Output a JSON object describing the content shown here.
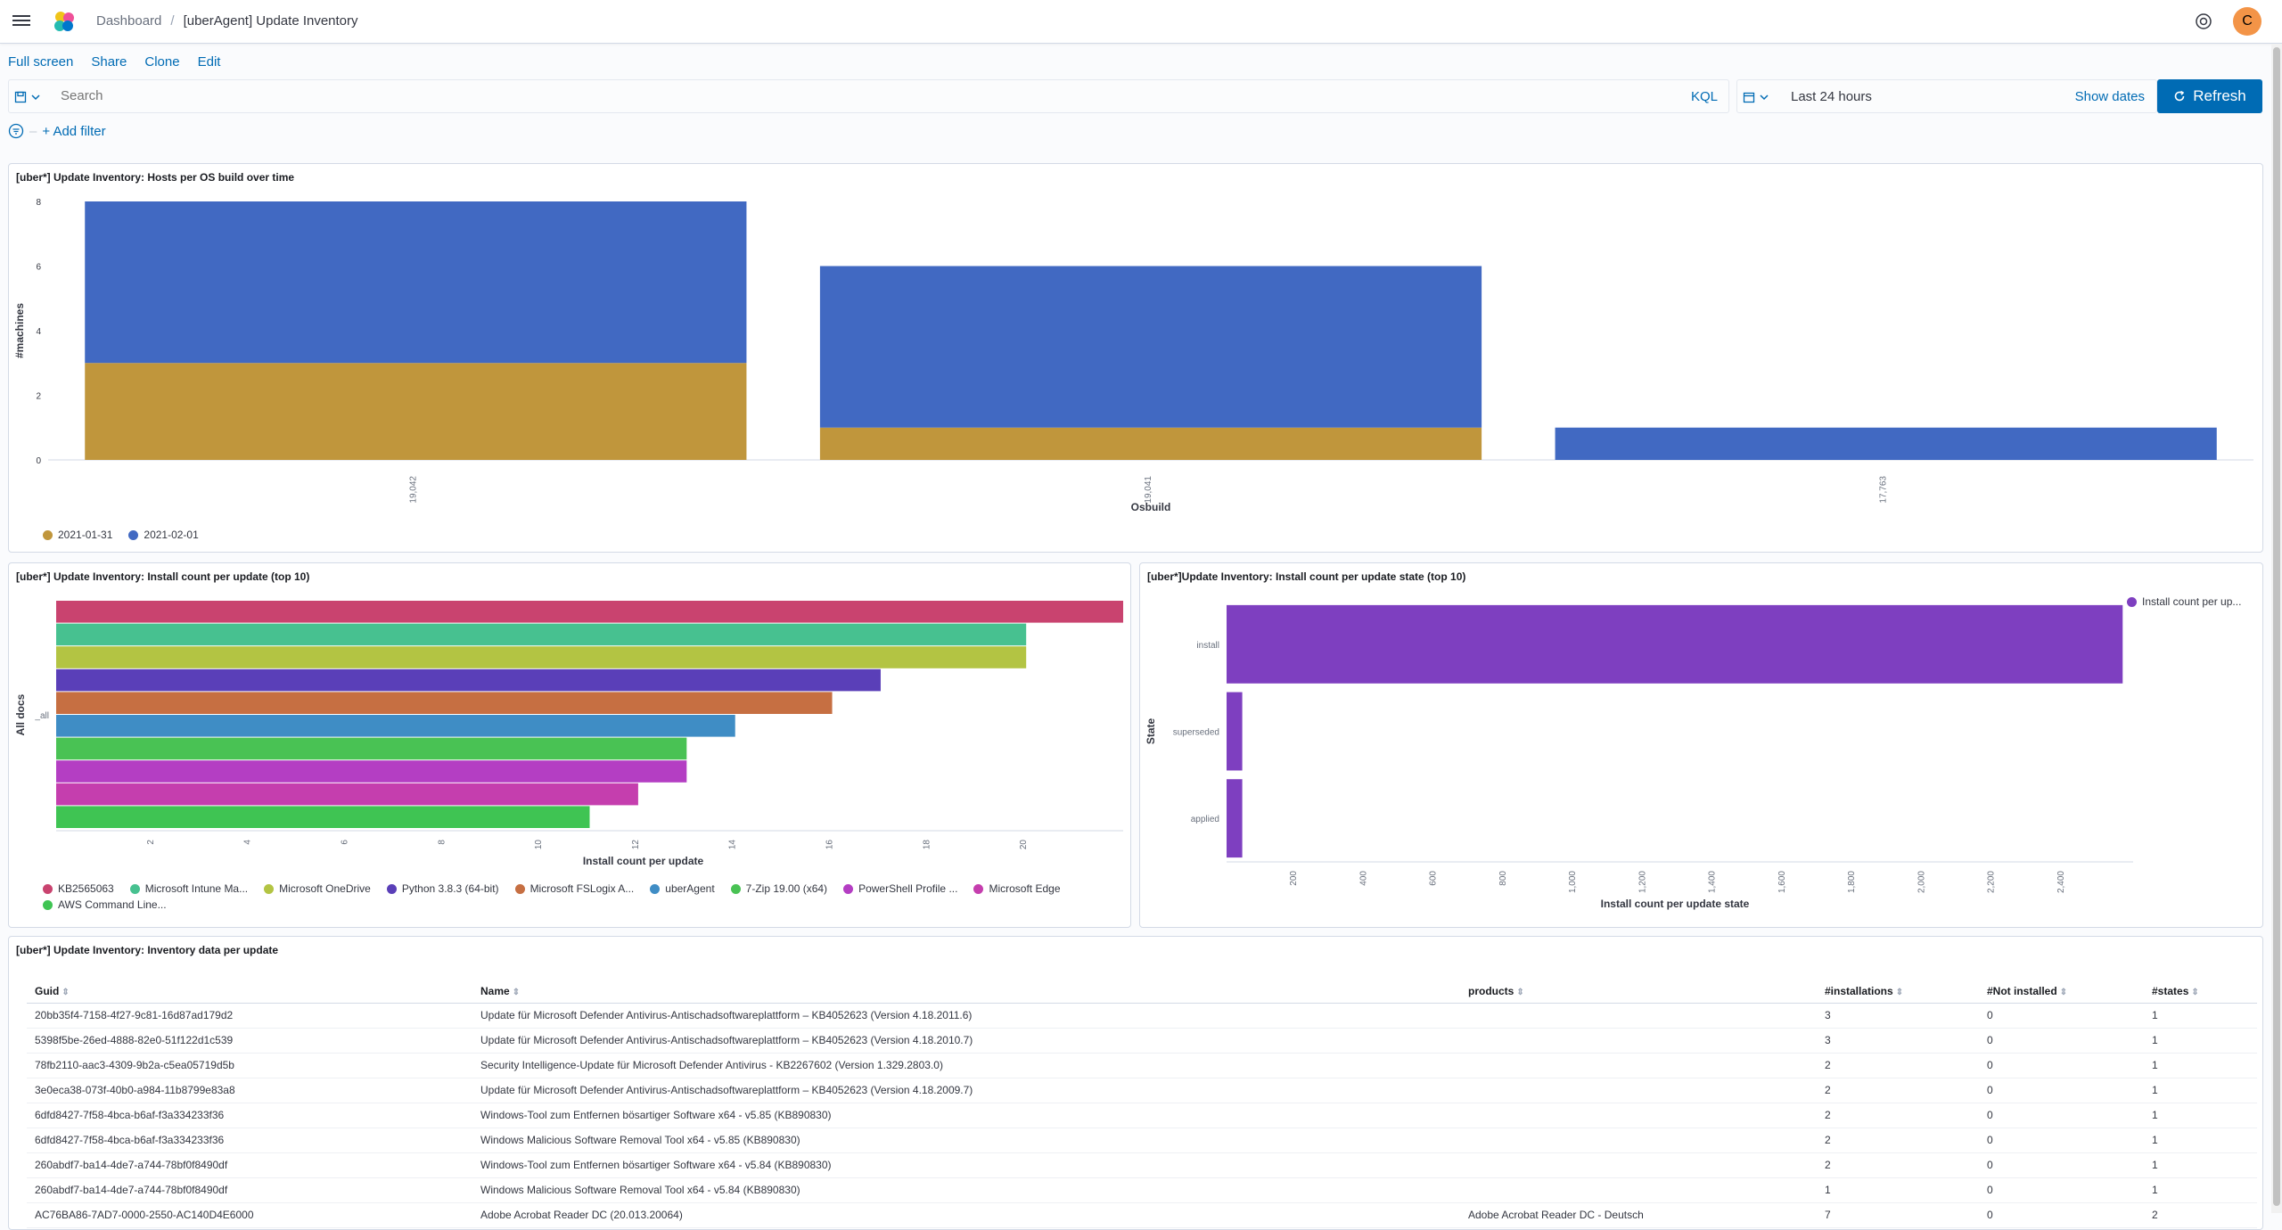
{
  "header": {
    "breadcrumbs": [
      "Dashboard",
      "[uberAgent] Update Inventory"
    ],
    "avatar_initial": "C",
    "avatar_color": "#f39447"
  },
  "menu": [
    "Full screen",
    "Share",
    "Clone",
    "Edit"
  ],
  "query": {
    "placeholder": "Search",
    "language": "KQL"
  },
  "time": {
    "range": "Last 24 hours",
    "show_dates": "Show dates",
    "refresh": "Refresh"
  },
  "filter": {
    "add": "+ Add filter"
  },
  "panel1": {
    "title": "[uber*] Update Inventory: Hosts per OS build over time",
    "chart_data": {
      "type": "bar",
      "stacked": true,
      "categories": [
        "19,042",
        "19,041",
        "17,763"
      ],
      "series": [
        {
          "name": "2021-01-31",
          "color": "#c0963c",
          "values": [
            3,
            1,
            0
          ]
        },
        {
          "name": "2021-02-01",
          "color": "#4169c2",
          "values": [
            5,
            5,
            1
          ]
        }
      ],
      "xlabel": "Osbuild",
      "ylabel": "#machines",
      "ylim": [
        0,
        8
      ],
      "yticks": [
        "0",
        "2",
        "4",
        "6",
        "8"
      ],
      "legend_position": "bottom-left"
    }
  },
  "panel2": {
    "title": "[uber*] Update Inventory: Install count per update (top 10)",
    "chart_data": {
      "type": "bar",
      "orientation": "horizontal",
      "category_label": "_all",
      "series": [
        {
          "name": "KB2565063",
          "color": "#c9436f",
          "value": 22
        },
        {
          "name": "Microsoft Intune Ma...",
          "color": "#47c190",
          "value": 20
        },
        {
          "name": "Microsoft OneDrive",
          "color": "#b3c443",
          "value": 20
        },
        {
          "name": "Python 3.8.3 (64-bit)",
          "color": "#5a3fb8",
          "value": 17
        },
        {
          "name": "Microsoft FSLogix A...",
          "color": "#c66f42",
          "value": 16
        },
        {
          "name": "uberAgent",
          "color": "#3f8dc5",
          "value": 14
        },
        {
          "name": "7-Zip 19.00 (x64)",
          "color": "#49c254",
          "value": 13
        },
        {
          "name": "PowerShell Profile ...",
          "color": "#b43ec3",
          "value": 13
        },
        {
          "name": "Microsoft Edge",
          "color": "#c53eae",
          "value": 12
        },
        {
          "name": "AWS Command Line...",
          "color": "#3fc453",
          "value": 11
        }
      ],
      "xlabel": "Install count per update",
      "ylabel": "All docs",
      "xlim": [
        0,
        22
      ],
      "xticks": [
        "2",
        "4",
        "6",
        "8",
        "10",
        "12",
        "14",
        "16",
        "18",
        "20"
      ],
      "legend_position": "bottom-left"
    }
  },
  "panel3": {
    "title": "[uber*]Update Inventory: Install count per update state (top 10)",
    "chart_data": {
      "type": "bar",
      "orientation": "horizontal",
      "categories": [
        "install",
        "superseded",
        "applied"
      ],
      "series": [
        {
          "name": "Install count per up...",
          "color": "#7e3fc0",
          "values": [
            2570,
            45,
            45
          ]
        }
      ],
      "xlabel": "Install count per update state",
      "ylabel": "State",
      "xlim": [
        0,
        2600
      ],
      "xticks": [
        "200",
        "400",
        "600",
        "800",
        "1,000",
        "1,200",
        "1,400",
        "1,600",
        "1,800",
        "2,000",
        "2,200",
        "2,400"
      ],
      "legend_position": "top-right"
    }
  },
  "table": {
    "title": "[uber*] Update Inventory: Inventory data per update",
    "columns": [
      "Guid",
      "Name",
      "products",
      "#installations",
      "#Not installed",
      "#states"
    ],
    "rows": [
      [
        "20bb35f4-7158-4f27-9c81-16d87ad179d2",
        "Update für Microsoft Defender Antivirus-Antischadsoftwareplattform – KB4052623 (Version 4.18.2011.6)",
        "",
        "3",
        "0",
        "1"
      ],
      [
        "5398f5be-26ed-4888-82e0-51f122d1c539",
        "Update für Microsoft Defender Antivirus-Antischadsoftwareplattform – KB4052623 (Version 4.18.2010.7)",
        "",
        "3",
        "0",
        "1"
      ],
      [
        "78fb2110-aac3-4309-9b2a-c5ea05719d5b",
        "Security Intelligence-Update für Microsoft Defender Antivirus - KB2267602 (Version 1.329.2803.0)",
        "",
        "2",
        "0",
        "1"
      ],
      [
        "3e0eca38-073f-40b0-a984-11b8799e83a8",
        "Update für Microsoft Defender Antivirus-Antischadsoftwareplattform – KB4052623 (Version 4.18.2009.7)",
        "",
        "2",
        "0",
        "1"
      ],
      [
        "6dfd8427-7f58-4bca-b6af-f3a334233f36",
        "Windows-Tool zum Entfernen bösartiger Software x64 - v5.85 (KB890830)",
        "",
        "2",
        "0",
        "1"
      ],
      [
        "6dfd8427-7f58-4bca-b6af-f3a334233f36",
        "Windows Malicious Software Removal Tool x64 - v5.85 (KB890830)",
        "",
        "2",
        "0",
        "1"
      ],
      [
        "260abdf7-ba14-4de7-a744-78bf0f8490df",
        "Windows-Tool zum Entfernen bösartiger Software x64 - v5.84 (KB890830)",
        "",
        "2",
        "0",
        "1"
      ],
      [
        "260abdf7-ba14-4de7-a744-78bf0f8490df",
        "Windows Malicious Software Removal Tool x64 - v5.84 (KB890830)",
        "",
        "1",
        "0",
        "1"
      ],
      [
        "AC76BA86-7AD7-0000-2550-AC140D4E6000",
        "Adobe Acrobat Reader DC (20.013.20064)",
        "Adobe Acrobat Reader DC - Deutsch",
        "7",
        "0",
        "2"
      ]
    ]
  }
}
